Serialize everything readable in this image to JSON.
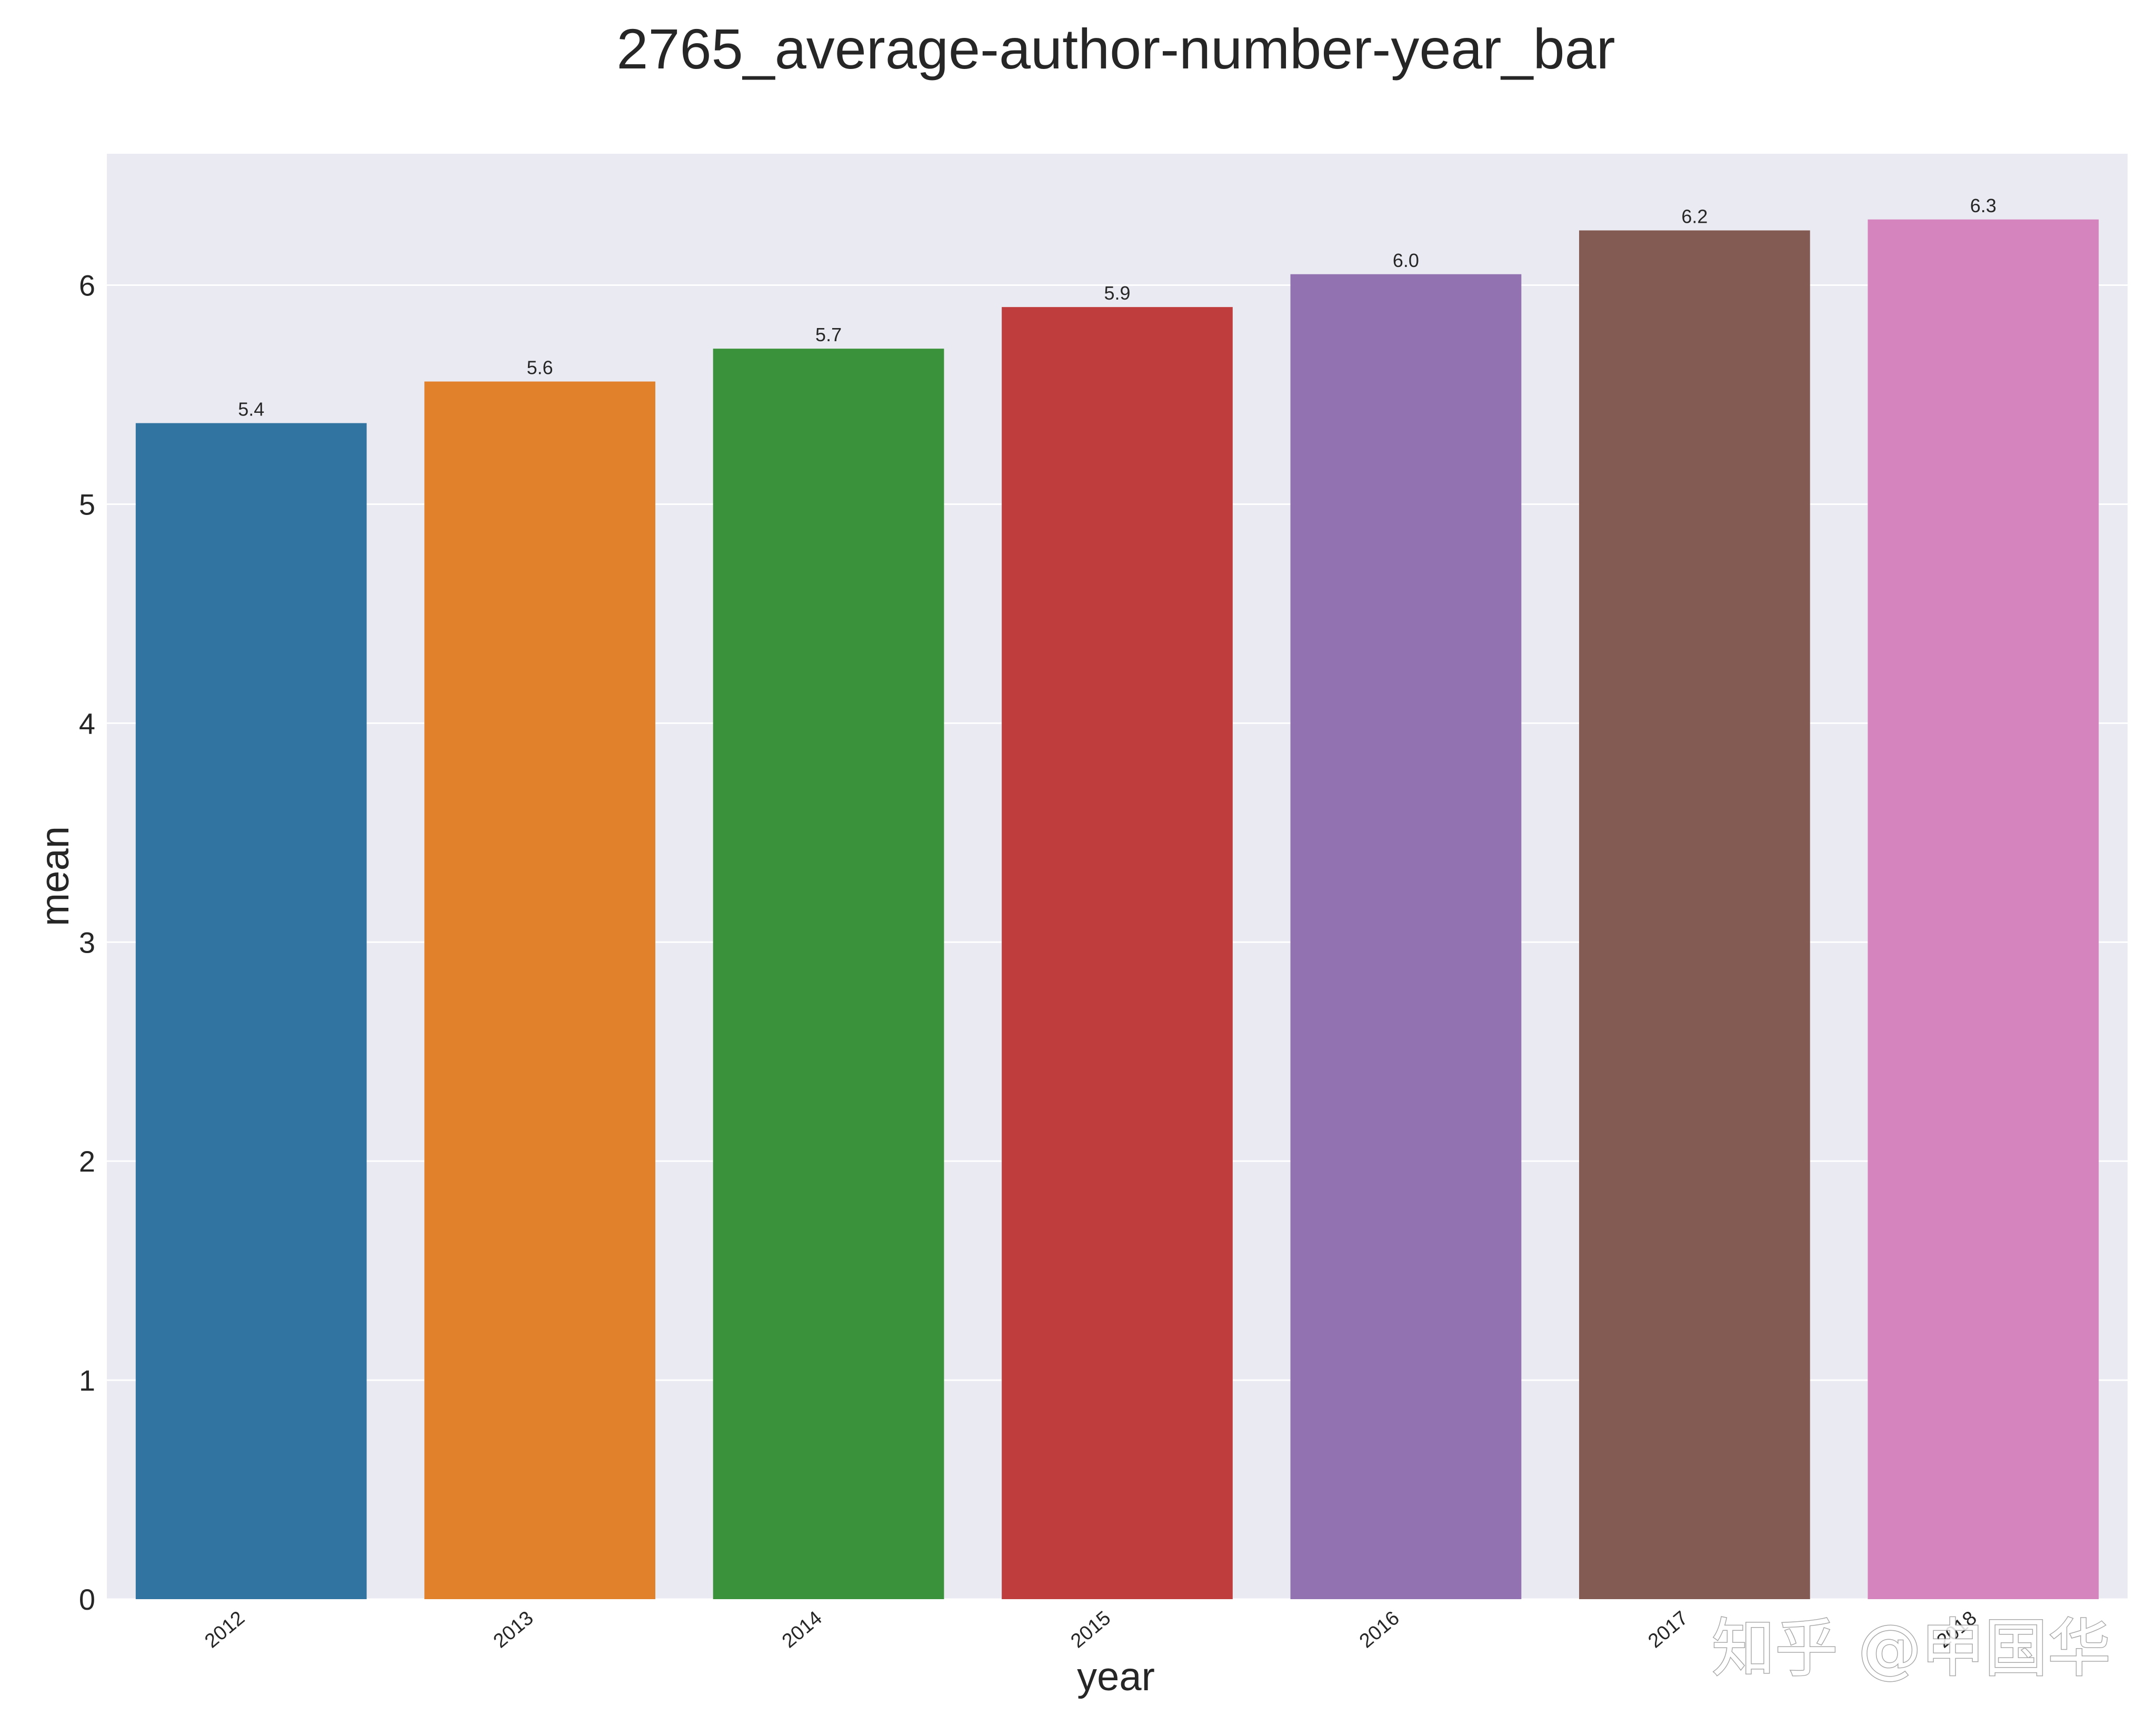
{
  "chart_data": {
    "type": "bar",
    "title": "2765_average-author-number-year_bar",
    "xlabel": "year",
    "ylabel": "mean",
    "categories": [
      "2012",
      "2013",
      "2014",
      "2015",
      "2016",
      "2017",
      "2018"
    ],
    "values": [
      5.37,
      5.56,
      5.71,
      5.9,
      6.05,
      6.25,
      6.3
    ],
    "value_labels": [
      "5.4",
      "5.6",
      "5.7",
      "5.9",
      "6.0",
      "6.2",
      "6.3"
    ],
    "colors": [
      "#3274a1",
      "#e1812c",
      "#3a923a",
      "#c03d3e",
      "#9372b2",
      "#845b53",
      "#d684bd"
    ],
    "ylim": [
      0,
      6.6
    ],
    "yticks": [
      0,
      1,
      2,
      3,
      4,
      5,
      6
    ],
    "grid": true,
    "background": "#eaeaf2"
  },
  "watermark": "知乎 @申国华"
}
